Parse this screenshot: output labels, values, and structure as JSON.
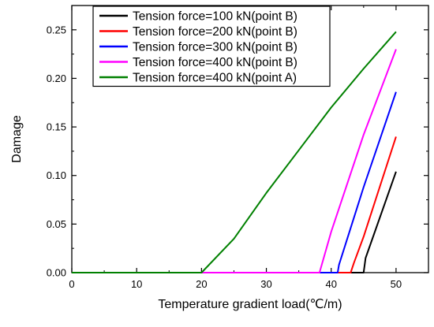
{
  "chart_data": {
    "type": "line",
    "title": "",
    "xlabel": "Temperature gradient load(℃/m)",
    "ylabel": "Damage",
    "xlim": [
      0,
      55
    ],
    "ylim": [
      0,
      0.275
    ],
    "x_ticks": [
      "0",
      "10",
      "20",
      "30",
      "40",
      "50"
    ],
    "y_ticks": [
      "0.00",
      "0.05",
      "0.10",
      "0.15",
      "0.20",
      "0.25"
    ],
    "grid": false,
    "legend_position": "top-right",
    "series": [
      {
        "name": "Tension force=100 kN(point B)",
        "color": "#000000",
        "x": [
          0,
          45,
          45.3,
          50
        ],
        "y": [
          0,
          0,
          0.015,
          0.104
        ]
      },
      {
        "name": "Tension force=200 kN(point B)",
        "color": "#ff0000",
        "x": [
          0,
          43,
          43.5,
          45,
          50
        ],
        "y": [
          0,
          0,
          0.01,
          0.037,
          0.14
        ]
      },
      {
        "name": "Tension force=300 kN(point B)",
        "color": "#0000ff",
        "x": [
          0,
          41,
          41.2,
          45,
          50
        ],
        "y": [
          0,
          0,
          0.008,
          0.088,
          0.186
        ]
      },
      {
        "name": "Tension force=400 kN(point B)",
        "color": "#ff00ff",
        "x": [
          0,
          38.2,
          40,
          45,
          50
        ],
        "y": [
          0,
          0,
          0.042,
          0.142,
          0.23
        ]
      },
      {
        "name": "Tension force=400 kN(point A)",
        "color": "#008000",
        "x": [
          0,
          20,
          25,
          30,
          35,
          40,
          45,
          50
        ],
        "y": [
          0,
          0,
          0.035,
          0.082,
          0.126,
          0.17,
          0.21,
          0.248
        ]
      }
    ]
  }
}
